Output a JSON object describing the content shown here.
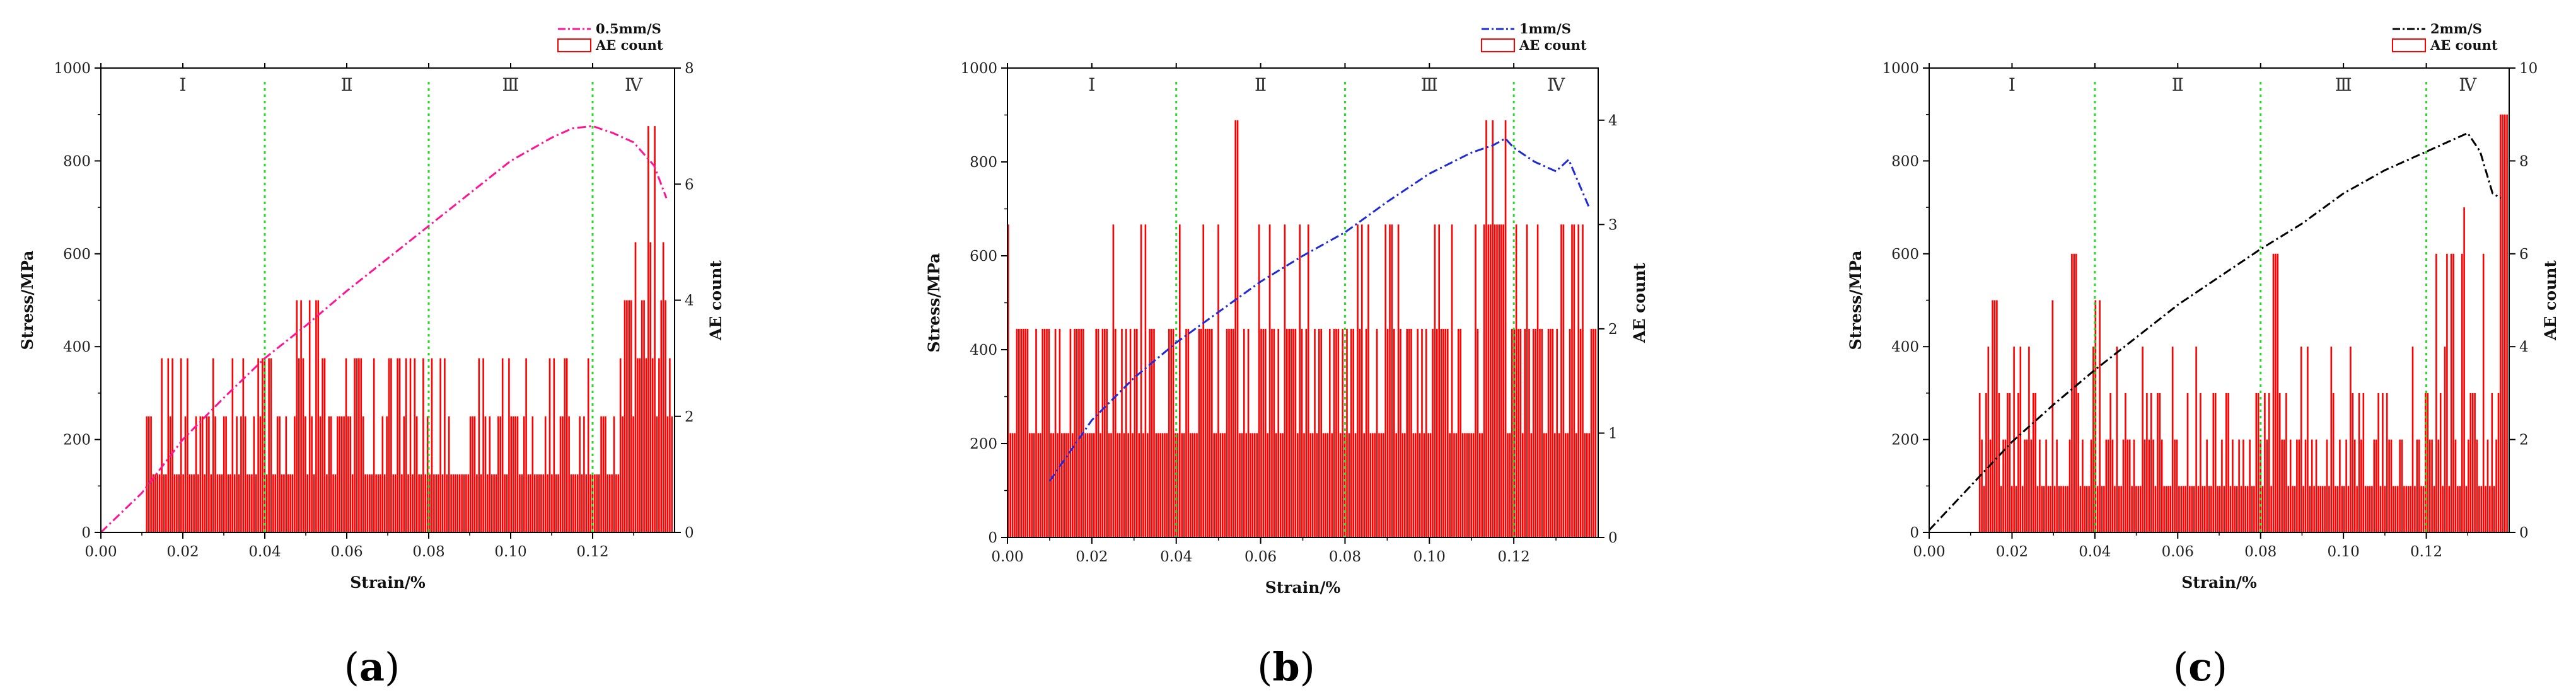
{
  "chart_data": [
    {
      "type": "line",
      "caption_letter": "a",
      "xlabel": "Strain/%",
      "ylabel": "Stress/MPa",
      "y2label": "AE count",
      "xlim": [
        0,
        0.14
      ],
      "ylim": [
        0,
        1000
      ],
      "y2lim": [
        0,
        8
      ],
      "xticks": [
        "0.00",
        "0.02",
        "0.04",
        "0.06",
        "0.08",
        "0.10",
        "0.12"
      ],
      "yticks": [
        "0",
        "200",
        "400",
        "600",
        "800",
        "1000"
      ],
      "y2ticks": [
        "0",
        "2",
        "4",
        "6",
        "8"
      ],
      "stage_labels": [
        "Ⅰ",
        "Ⅱ",
        "Ⅲ",
        "Ⅳ"
      ],
      "stage_boundaries": [
        0.04,
        0.08,
        0.12
      ],
      "stress_series": {
        "name": "0.5mm/S",
        "color": "#ff1493",
        "x": [
          0,
          0.01,
          0.02,
          0.03,
          0.04,
          0.05,
          0.06,
          0.07,
          0.08,
          0.09,
          0.1,
          0.11,
          0.115,
          0.12,
          0.125,
          0.13,
          0.135,
          0.138
        ],
        "y": [
          0,
          85,
          200,
          290,
          375,
          445,
          520,
          590,
          660,
          730,
          800,
          850,
          870,
          875,
          860,
          840,
          790,
          720
        ]
      },
      "ae_series": {
        "name": "AE count",
        "color": "#ff0000",
        "x_start": 0.011,
        "max": 7
      }
    },
    {
      "type": "line",
      "caption_letter": "b",
      "xlabel": "Strain/%",
      "ylabel": "Stress/MPa",
      "y2label": "AE count",
      "xlim": [
        0,
        0.14
      ],
      "ylim": [
        0,
        1000
      ],
      "y2lim": [
        0,
        4.5
      ],
      "xticks": [
        "0.00",
        "0.02",
        "0.04",
        "0.06",
        "0.08",
        "0.10",
        "0.12"
      ],
      "yticks": [
        "0",
        "200",
        "400",
        "600",
        "800",
        "1000"
      ],
      "y2ticks": [
        "0",
        "1",
        "2",
        "3",
        "4"
      ],
      "stage_labels": [
        "Ⅰ",
        "Ⅱ",
        "Ⅲ",
        "Ⅳ"
      ],
      "stage_boundaries": [
        0.04,
        0.08,
        0.12
      ],
      "stress_series": {
        "name": "1mm/S",
        "color": "#1f2bd6",
        "x": [
          0.01,
          0.02,
          0.03,
          0.04,
          0.05,
          0.06,
          0.07,
          0.08,
          0.09,
          0.1,
          0.11,
          0.115,
          0.118,
          0.12,
          0.125,
          0.13,
          0.133,
          0.138
        ],
        "y": [
          120,
          250,
          340,
          415,
          480,
          545,
          600,
          650,
          715,
          775,
          820,
          835,
          850,
          830,
          800,
          780,
          805,
          700
        ]
      },
      "ae_series": {
        "name": "AE count",
        "color": "#ff0000",
        "x_start": 0.0,
        "max": 4
      }
    },
    {
      "type": "line",
      "caption_letter": "c",
      "xlabel": "Strain/%",
      "ylabel": "Stress/MPa",
      "y2label": "AE count",
      "xlim": [
        0,
        0.14
      ],
      "ylim": [
        0,
        1000
      ],
      "y2lim": [
        0,
        10
      ],
      "xticks": [
        "0.00",
        "0.02",
        "0.04",
        "0.06",
        "0.08",
        "0.10",
        "0.12"
      ],
      "yticks": [
        "0",
        "200",
        "400",
        "600",
        "800",
        "1000"
      ],
      "y2ticks": [
        "0",
        "2",
        "4",
        "6",
        "8",
        "10"
      ],
      "stage_labels": [
        "Ⅰ",
        "Ⅱ",
        "Ⅲ",
        "Ⅳ"
      ],
      "stage_boundaries": [
        0.04,
        0.08,
        0.12
      ],
      "stress_series": {
        "name": "2mm/S",
        "color": "#000000",
        "x": [
          0,
          0.01,
          0.02,
          0.03,
          0.04,
          0.05,
          0.06,
          0.07,
          0.08,
          0.09,
          0.1,
          0.11,
          0.12,
          0.125,
          0.13,
          0.133,
          0.136,
          0.138
        ],
        "y": [
          5,
          100,
          195,
          275,
          350,
          420,
          490,
          550,
          610,
          665,
          730,
          780,
          820,
          840,
          860,
          820,
          730,
          720
        ]
      },
      "ae_series": {
        "name": "AE count",
        "color": "#ff0000",
        "x_start": 0.012,
        "max": 9
      }
    }
  ]
}
